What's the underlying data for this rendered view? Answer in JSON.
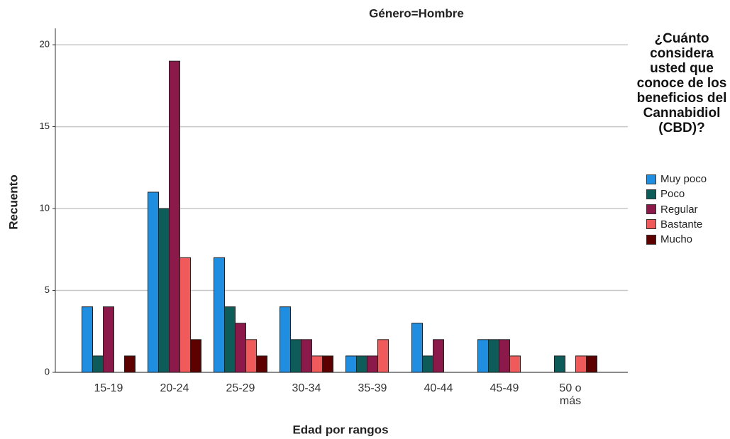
{
  "chart_data": {
    "type": "bar",
    "title": "Género=Hombre",
    "x_label": "Edad por rangos",
    "y_label": "Recuento",
    "legend_title": "¿Cuánto considera usted que conoce de los beneficios del Cannabidiol (CBD)?",
    "categories": [
      "15-19",
      "20-24",
      "25-29",
      "30-34",
      "35-39",
      "40-44",
      "45-49",
      "50 o más"
    ],
    "series": [
      {
        "name": "Muy poco",
        "color": "#1f8de0",
        "values": [
          4,
          11,
          7,
          4,
          1,
          3,
          2,
          0
        ]
      },
      {
        "name": "Poco",
        "color": "#0d5c5a",
        "values": [
          1,
          10,
          4,
          2,
          1,
          1,
          2,
          1
        ]
      },
      {
        "name": "Regular",
        "color": "#8b1a4b",
        "values": [
          4,
          19,
          3,
          2,
          1,
          2,
          2,
          0
        ]
      },
      {
        "name": "Bastante",
        "color": "#f05a5a",
        "values": [
          0,
          7,
          2,
          1,
          2,
          0,
          1,
          1
        ]
      },
      {
        "name": "Mucho",
        "color": "#5c0000",
        "values": [
          1,
          2,
          1,
          1,
          0,
          0,
          0,
          1
        ]
      }
    ],
    "ylim": [
      0,
      21
    ],
    "yticks": [
      0,
      5,
      10,
      15,
      20
    ],
    "grid": true,
    "legend": "right"
  }
}
